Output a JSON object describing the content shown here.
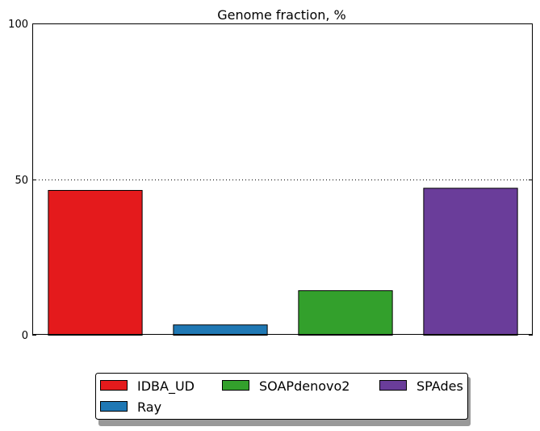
{
  "chart_data": {
    "type": "bar",
    "title": "Genome fraction, %",
    "xlabel": "",
    "ylabel": "",
    "ylim": [
      0,
      100
    ],
    "yticks": [
      0,
      50,
      100
    ],
    "grid": "horizontal dotted line at 50",
    "legend_placement": "bottom-center, below plot",
    "categories": [
      "IDBA_UD",
      "Ray",
      "SOAPdenovo2",
      "SPAdes"
    ],
    "values": [
      46.5,
      3.3,
      14.3,
      47.2
    ],
    "colors": [
      "#e41a1c",
      "#1f78b4",
      "#33a02c",
      "#6a3d9a"
    ],
    "legend": {
      "entries": [
        "IDBA_UD",
        "Ray",
        "SOAPdenovo2",
        "SPAdes"
      ]
    }
  }
}
